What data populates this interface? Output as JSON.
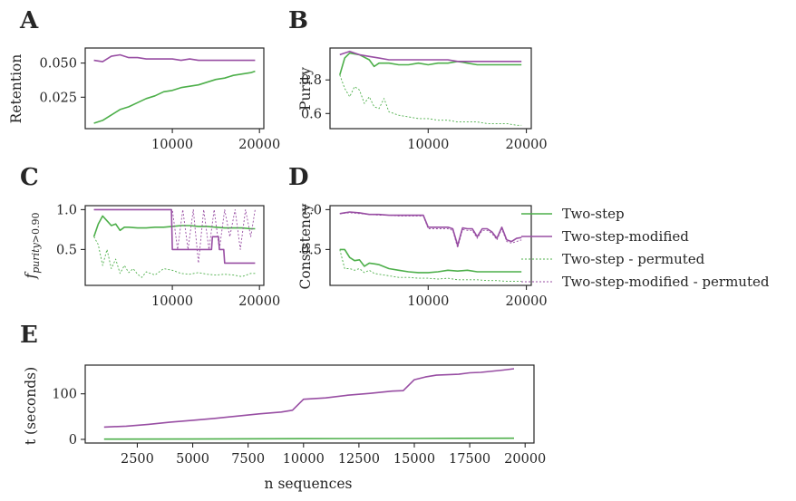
{
  "colors": {
    "two_step": "#4daf4a",
    "two_step_modified": "#984ea3",
    "axis": "#262626"
  },
  "legend": {
    "entries": [
      {
        "label": "Two-step",
        "series": "two_step",
        "style": "solid"
      },
      {
        "label": "Two-step-modified",
        "series": "two_step_modified",
        "style": "solid"
      },
      {
        "label": "Two-step - permuted",
        "series": "two_step",
        "style": "dotted"
      },
      {
        "label": "Two-step-modified - permuted",
        "series": "two_step_modified",
        "style": "dotted"
      }
    ]
  },
  "chart_data": [
    {
      "panel": "A",
      "type": "line",
      "xlabel": "",
      "ylabel": "Retention",
      "xlim": [
        0,
        20500
      ],
      "ylim": [
        0.002,
        0.061
      ],
      "xticks": [
        10000,
        20000
      ],
      "xtick_labels": [
        "10000",
        "20000"
      ],
      "yticks": [
        0.025,
        0.05
      ],
      "ytick_labels": [
        "0.025",
        "0.050"
      ],
      "series": [
        {
          "key": "two_step",
          "style": "solid",
          "x": [
            1000,
            2000,
            3000,
            4000,
            5000,
            6000,
            7000,
            8000,
            9000,
            10000,
            11000,
            12000,
            13000,
            14000,
            15000,
            16000,
            17000,
            18000,
            19000,
            19500
          ],
          "y": [
            0.006,
            0.008,
            0.012,
            0.016,
            0.018,
            0.021,
            0.024,
            0.026,
            0.029,
            0.03,
            0.032,
            0.033,
            0.034,
            0.036,
            0.038,
            0.039,
            0.041,
            0.042,
            0.043,
            0.044
          ]
        },
        {
          "key": "two_step_modified",
          "style": "solid",
          "x": [
            1000,
            2000,
            3000,
            4000,
            5000,
            6000,
            7000,
            8000,
            9000,
            10000,
            11000,
            12000,
            13000,
            14000,
            15000,
            16000,
            17000,
            18000,
            19000,
            19500
          ],
          "y": [
            0.052,
            0.051,
            0.055,
            0.056,
            0.054,
            0.054,
            0.053,
            0.053,
            0.053,
            0.053,
            0.052,
            0.053,
            0.052,
            0.052,
            0.052,
            0.052,
            0.052,
            0.052,
            0.052,
            0.052
          ]
        }
      ]
    },
    {
      "panel": "B",
      "type": "line",
      "xlabel": "",
      "ylabel": "Purity",
      "xlim": [
        0,
        20500
      ],
      "ylim": [
        0.51,
        0.99
      ],
      "xticks": [
        10000,
        20000
      ],
      "xtick_labels": [
        "10000",
        "20000"
      ],
      "yticks": [
        0.6,
        0.8
      ],
      "ytick_labels": [
        "0.6",
        "0.8"
      ],
      "series": [
        {
          "key": "two_step",
          "style": "solid",
          "x": [
            1000,
            1500,
            2000,
            3000,
            4000,
            4500,
            5000,
            6000,
            7000,
            8000,
            9000,
            10000,
            11000,
            12000,
            13000,
            14000,
            15000,
            16000,
            17000,
            18000,
            19000,
            19500
          ],
          "y": [
            0.83,
            0.93,
            0.96,
            0.95,
            0.92,
            0.88,
            0.9,
            0.9,
            0.89,
            0.89,
            0.9,
            0.89,
            0.9,
            0.9,
            0.91,
            0.9,
            0.89,
            0.89,
            0.89,
            0.89,
            0.89,
            0.89
          ]
        },
        {
          "key": "two_step_modified",
          "style": "solid",
          "x": [
            1000,
            2000,
            3000,
            4000,
            5000,
            6000,
            7000,
            8000,
            9000,
            10000,
            11000,
            12000,
            13000,
            14000,
            15000,
            16000,
            17000,
            18000,
            19000,
            19500
          ],
          "y": [
            0.95,
            0.97,
            0.95,
            0.94,
            0.93,
            0.92,
            0.92,
            0.92,
            0.92,
            0.92,
            0.92,
            0.92,
            0.91,
            0.91,
            0.91,
            0.91,
            0.91,
            0.91,
            0.91,
            0.91
          ]
        },
        {
          "key": "two_step",
          "style": "dotted",
          "x": [
            1000,
            1500,
            2000,
            2500,
            3000,
            3500,
            4000,
            4500,
            5000,
            5500,
            6000,
            6500,
            7000,
            8000,
            9000,
            10000,
            11000,
            12000,
            13000,
            14000,
            15000,
            16000,
            17000,
            18000,
            19000,
            19500
          ],
          "y": [
            0.83,
            0.75,
            0.7,
            0.76,
            0.74,
            0.66,
            0.7,
            0.64,
            0.63,
            0.69,
            0.61,
            0.6,
            0.59,
            0.58,
            0.57,
            0.57,
            0.56,
            0.56,
            0.55,
            0.55,
            0.55,
            0.54,
            0.54,
            0.54,
            0.53,
            0.53
          ]
        }
      ]
    },
    {
      "panel": "C",
      "type": "line",
      "xlabel": "",
      "ylabel": "f_purity > 0.90",
      "xlim": [
        0,
        20500
      ],
      "ylim": [
        0.05,
        1.05
      ],
      "xticks": [
        10000,
        20000
      ],
      "xtick_labels": [
        "10000",
        "20000"
      ],
      "yticks": [
        0.5,
        1.0
      ],
      "ytick_labels": [
        "0.5",
        "1.0"
      ],
      "series": [
        {
          "key": "two_step",
          "style": "solid",
          "x": [
            1000,
            1500,
            2000,
            2500,
            3000,
            3500,
            4000,
            4500,
            5000,
            6000,
            7000,
            8000,
            9000,
            10000,
            11000,
            12000,
            13000,
            14000,
            15000,
            16000,
            17000,
            18000,
            19000,
            19500
          ],
          "y": [
            0.66,
            0.82,
            0.92,
            0.86,
            0.8,
            0.82,
            0.74,
            0.78,
            0.78,
            0.77,
            0.77,
            0.78,
            0.78,
            0.79,
            0.8,
            0.8,
            0.79,
            0.79,
            0.78,
            0.77,
            0.77,
            0.77,
            0.76,
            0.76
          ]
        },
        {
          "key": "two_step_modified",
          "style": "solid",
          "x": [
            1000,
            9900,
            10000,
            14500,
            14600,
            15300,
            15400,
            15900,
            16000,
            19500
          ],
          "y": [
            1.0,
            1.0,
            0.5,
            0.5,
            0.66,
            0.66,
            0.5,
            0.5,
            0.33,
            0.33
          ]
        },
        {
          "key": "two_step",
          "style": "dotted",
          "x": [
            1000,
            1500,
            2000,
            2500,
            3000,
            3500,
            4000,
            4500,
            5000,
            5500,
            6000,
            6500,
            7000,
            8000,
            9000,
            10000,
            11000,
            12000,
            13000,
            14000,
            15000,
            16000,
            17000,
            18000,
            19000,
            19500
          ],
          "y": [
            0.66,
            0.56,
            0.3,
            0.5,
            0.26,
            0.38,
            0.2,
            0.3,
            0.21,
            0.26,
            0.19,
            0.15,
            0.22,
            0.18,
            0.26,
            0.24,
            0.2,
            0.19,
            0.21,
            0.19,
            0.18,
            0.19,
            0.18,
            0.16,
            0.2,
            0.2
          ]
        },
        {
          "key": "two_step_modified",
          "style": "dotted",
          "x": [
            1000,
            10000,
            10600,
            11200,
            11800,
            12400,
            13000,
            13600,
            14200,
            14800,
            15400,
            16000,
            16600,
            17200,
            17800,
            18400,
            19000,
            19500
          ],
          "y": [
            1.0,
            1.0,
            0.5,
            1.0,
            0.5,
            1.0,
            0.33,
            1.0,
            0.5,
            1.0,
            0.5,
            1.0,
            0.66,
            1.0,
            0.5,
            1.0,
            0.66,
            1.0
          ]
        }
      ]
    },
    {
      "panel": "D",
      "type": "line",
      "xlabel": "",
      "ylabel": "Consistency",
      "xlim": [
        0,
        20500
      ],
      "ylim": [
        0.05,
        1.05
      ],
      "xticks": [
        10000,
        20000
      ],
      "xtick_labels": [
        "10000",
        "20000"
      ],
      "yticks": [
        0.5,
        1.0
      ],
      "ytick_labels": [
        "0.5",
        "1.0"
      ],
      "series": [
        {
          "key": "two_step",
          "style": "solid",
          "x": [
            1000,
            1500,
            2000,
            2500,
            3000,
            3500,
            4000,
            4500,
            5000,
            6000,
            7000,
            8000,
            9000,
            10000,
            11000,
            12000,
            13000,
            14000,
            15000,
            16000,
            17000,
            18000,
            19000,
            19500
          ],
          "y": [
            0.5,
            0.5,
            0.4,
            0.36,
            0.37,
            0.29,
            0.33,
            0.32,
            0.31,
            0.26,
            0.24,
            0.22,
            0.21,
            0.21,
            0.22,
            0.24,
            0.23,
            0.24,
            0.22,
            0.22,
            0.22,
            0.22,
            0.22,
            0.22
          ]
        },
        {
          "key": "two_step_modified",
          "style": "solid",
          "x": [
            1000,
            2000,
            3000,
            4000,
            5000,
            6000,
            7000,
            8000,
            9000,
            9500,
            10000,
            11000,
            12000,
            12500,
            13000,
            13500,
            14000,
            14500,
            15000,
            15500,
            16000,
            16500,
            17000,
            17500,
            18000,
            18500,
            19000,
            19500
          ],
          "y": [
            0.95,
            0.97,
            0.96,
            0.94,
            0.94,
            0.93,
            0.93,
            0.93,
            0.93,
            0.93,
            0.78,
            0.78,
            0.78,
            0.76,
            0.55,
            0.77,
            0.76,
            0.76,
            0.66,
            0.76,
            0.76,
            0.72,
            0.64,
            0.78,
            0.62,
            0.6,
            0.64,
            0.65
          ]
        },
        {
          "key": "two_step",
          "style": "dotted",
          "x": [
            1000,
            1500,
            2000,
            2500,
            3000,
            3500,
            4000,
            4500,
            5000,
            6000,
            7000,
            8000,
            9000,
            10000,
            11000,
            12000,
            13000,
            14000,
            15000,
            16000,
            17000,
            18000,
            19000,
            19500
          ],
          "y": [
            0.5,
            0.26,
            0.26,
            0.24,
            0.26,
            0.21,
            0.24,
            0.2,
            0.19,
            0.17,
            0.15,
            0.15,
            0.14,
            0.14,
            0.13,
            0.14,
            0.12,
            0.12,
            0.12,
            0.11,
            0.11,
            0.1,
            0.1,
            0.1
          ]
        },
        {
          "key": "two_step_modified",
          "style": "dotted",
          "x": [
            1000,
            2000,
            3000,
            4000,
            5000,
            6000,
            7000,
            8000,
            9000,
            9500,
            10000,
            11000,
            12000,
            12500,
            13000,
            13500,
            14000,
            14500,
            15000,
            15500,
            16000,
            16500,
            17000,
            17500,
            18000,
            18500,
            19000,
            19500
          ],
          "y": [
            0.95,
            0.96,
            0.95,
            0.94,
            0.93,
            0.93,
            0.92,
            0.92,
            0.92,
            0.92,
            0.76,
            0.76,
            0.76,
            0.74,
            0.52,
            0.75,
            0.74,
            0.74,
            0.64,
            0.74,
            0.74,
            0.7,
            0.62,
            0.76,
            0.6,
            0.58,
            0.6,
            0.62
          ]
        }
      ]
    },
    {
      "panel": "E",
      "type": "line",
      "xlabel": "n sequences",
      "ylabel": "t (seconds)",
      "xlim": [
        150,
        20400
      ],
      "ylim": [
        -8,
        163
      ],
      "xticks": [
        2500,
        5000,
        7500,
        10000,
        12500,
        15000,
        17500,
        20000
      ],
      "xtick_labels": [
        "2500",
        "5000",
        "7500",
        "10000",
        "12500",
        "15000",
        "17500",
        "20000"
      ],
      "yticks": [
        0,
        100
      ],
      "ytick_labels": [
        "0",
        "100"
      ],
      "series": [
        {
          "key": "two_step",
          "style": "solid",
          "x": [
            1000,
            5000,
            10000,
            15000,
            19500
          ],
          "y": [
            0.5,
            0.8,
            1.5,
            2.0,
            2.5
          ]
        },
        {
          "key": "two_step_modified",
          "style": "solid",
          "x": [
            1000,
            2000,
            3000,
            4000,
            5000,
            6000,
            7000,
            8000,
            9000,
            9500,
            10000,
            11000,
            12000,
            13000,
            14000,
            14500,
            15000,
            15500,
            16000,
            17000,
            17500,
            18000,
            19000,
            19500
          ],
          "y": [
            27,
            29,
            33,
            38,
            42,
            46,
            51,
            56,
            60,
            64,
            88,
            91,
            97,
            101,
            106,
            107,
            131,
            137,
            141,
            143,
            146,
            147,
            152,
            155
          ]
        }
      ]
    }
  ]
}
